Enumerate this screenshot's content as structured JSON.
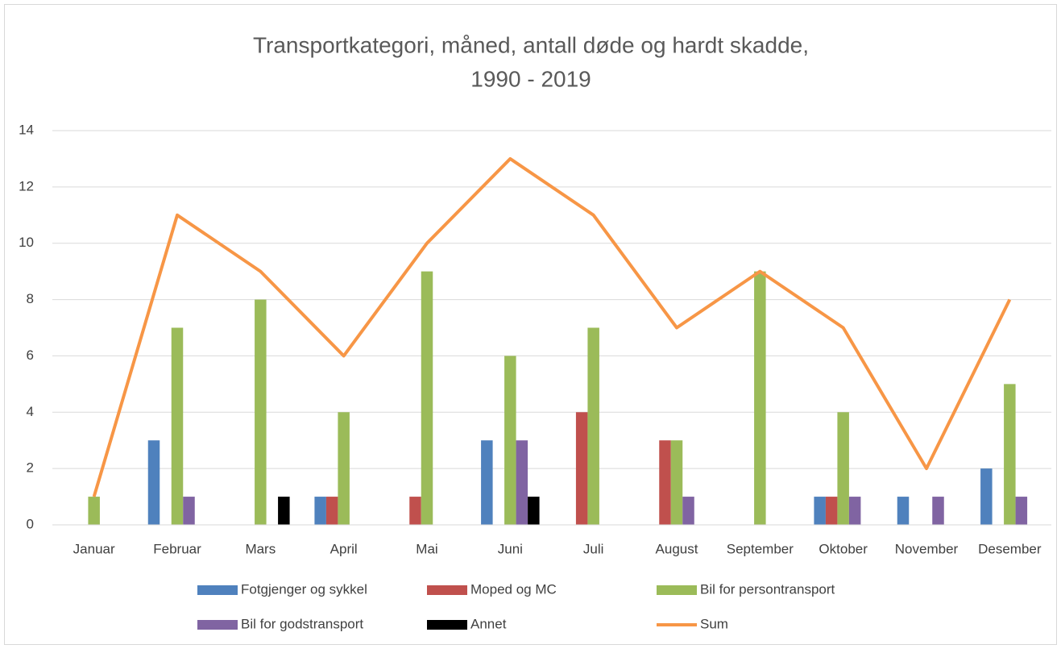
{
  "chart_data": {
    "type": "bar",
    "title": [
      "Transportkategori, måned, antall døde og hardt skadde,",
      "1990 - 2019"
    ],
    "categories": [
      "Januar",
      "Februar",
      "Mars",
      "April",
      "Mai",
      "Juni",
      "Juli",
      "August",
      "September",
      "Oktober",
      "November",
      "Desember"
    ],
    "series": [
      {
        "name": "Fotgjenger og sykkel",
        "color": "#4f81bd",
        "values": [
          0,
          3,
          0,
          1,
          0,
          3,
          0,
          0,
          0,
          1,
          1,
          2
        ]
      },
      {
        "name": "Moped og MC",
        "color": "#c0504d",
        "values": [
          0,
          0,
          0,
          1,
          1,
          0,
          4,
          3,
          0,
          1,
          0,
          0
        ]
      },
      {
        "name": "Bil for persontransport",
        "color": "#9bbb59",
        "values": [
          1,
          7,
          8,
          4,
          9,
          6,
          7,
          3,
          9,
          4,
          0,
          5
        ]
      },
      {
        "name": "Bil for godstransport",
        "color": "#8064a2",
        "values": [
          0,
          1,
          0,
          0,
          0,
          3,
          0,
          1,
          0,
          1,
          1,
          1
        ]
      },
      {
        "name": "Annet",
        "color": "#000000",
        "values": [
          0,
          0,
          1,
          0,
          0,
          1,
          0,
          0,
          0,
          0,
          0,
          0
        ]
      },
      {
        "name": "Sum",
        "color": "#f79646",
        "type": "line",
        "values": [
          1,
          11,
          9,
          6,
          10,
          13,
          11,
          7,
          9,
          7,
          2,
          8
        ]
      }
    ],
    "ylim": [
      0,
      14
    ],
    "yticks": [
      0,
      2,
      4,
      6,
      8,
      10,
      12,
      14
    ],
    "grid": true,
    "legend": "bottom"
  }
}
